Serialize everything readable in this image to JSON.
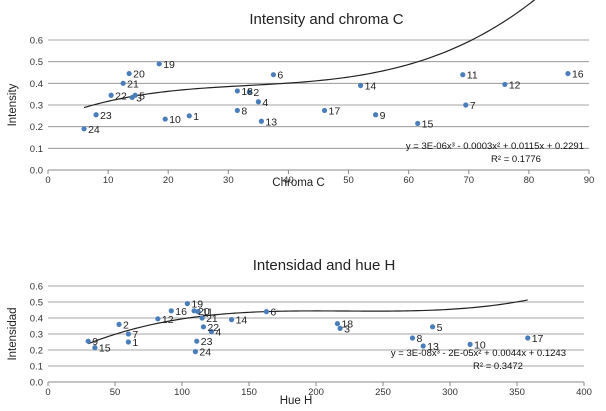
{
  "colors": {
    "marker": "#4a7ebb",
    "trend": "#222222",
    "grid": "#888888"
  },
  "chart_data": [
    {
      "type": "scatter",
      "title": "Intensity and chroma C",
      "xlabel": "Chroma C",
      "ylabel": "Intensity",
      "xlim": [
        0,
        90
      ],
      "ylim": [
        0,
        0.6
      ],
      "xticks": [
        0,
        10,
        20,
        30,
        40,
        50,
        60,
        70,
        80,
        90
      ],
      "yticks": [
        0,
        0.1,
        0.2,
        0.3,
        0.4,
        0.5,
        0.6
      ],
      "grid": "horizontal",
      "trendline": {
        "equation": "y = 3E-06x³ - 0.0003x² + 0.0115x + 0.2291",
        "r2": "R² = 0.1776",
        "coefficients": [
          3e-06,
          -0.0003,
          0.0115,
          0.2291
        ],
        "x_range": [
          6,
          86.5
        ]
      },
      "points": [
        {
          "label": "1",
          "x": 23.5,
          "y": 0.25
        },
        {
          "label": "2",
          "x": 33.5,
          "y": 0.36
        },
        {
          "label": "3",
          "x": 14,
          "y": 0.335
        },
        {
          "label": "4",
          "x": 35,
          "y": 0.315
        },
        {
          "label": "5",
          "x": 14.5,
          "y": 0.345
        },
        {
          "label": "6",
          "x": 37.5,
          "y": 0.44
        },
        {
          "label": "7",
          "x": 69.5,
          "y": 0.3
        },
        {
          "label": "8",
          "x": 31.5,
          "y": 0.275
        },
        {
          "label": "9",
          "x": 54.5,
          "y": 0.255
        },
        {
          "label": "10",
          "x": 19.5,
          "y": 0.235
        },
        {
          "label": "11",
          "x": 69,
          "y": 0.44
        },
        {
          "label": "12",
          "x": 76,
          "y": 0.395
        },
        {
          "label": "13",
          "x": 35.5,
          "y": 0.225
        },
        {
          "label": "14",
          "x": 52,
          "y": 0.39
        },
        {
          "label": "15",
          "x": 61.5,
          "y": 0.215
        },
        {
          "label": "16",
          "x": 86.5,
          "y": 0.445
        },
        {
          "label": "17",
          "x": 46,
          "y": 0.275
        },
        {
          "label": "18",
          "x": 31.5,
          "y": 0.365
        },
        {
          "label": "19",
          "x": 18.5,
          "y": 0.49
        },
        {
          "label": "20",
          "x": 13.5,
          "y": 0.445
        },
        {
          "label": "21",
          "x": 12.5,
          "y": 0.4
        },
        {
          "label": "22",
          "x": 10.5,
          "y": 0.345
        },
        {
          "label": "23",
          "x": 8,
          "y": 0.255
        },
        {
          "label": "24",
          "x": 6,
          "y": 0.19
        }
      ]
    },
    {
      "type": "scatter",
      "title": "Intensidad and hue H",
      "xlabel": "Hue  H",
      "ylabel": "Intensidad",
      "xlim": [
        0,
        400
      ],
      "ylim": [
        0,
        0.6
      ],
      "xticks": [
        0,
        50,
        100,
        150,
        200,
        250,
        300,
        350,
        400
      ],
      "yticks": [
        0,
        0.1,
        0.2,
        0.3,
        0.4,
        0.5,
        0.6
      ],
      "grid": "horizontal",
      "trendline": {
        "equation": "y = 3E-08x³ - 2E-05x² + 0.0044x + 0.1243",
        "r2": "R² = 0.3472",
        "coefficients": [
          3e-08,
          -2e-05,
          0.0044,
          0.1243
        ],
        "x_range": [
          30,
          358
        ]
      },
      "points": [
        {
          "label": "1",
          "x": 60,
          "y": 0.25
        },
        {
          "label": "2",
          "x": 53,
          "y": 0.36
        },
        {
          "label": "3",
          "x": 218,
          "y": 0.335
        },
        {
          "label": "4",
          "x": 122,
          "y": 0.315
        },
        {
          "label": "5",
          "x": 287,
          "y": 0.345
        },
        {
          "label": "6",
          "x": 163,
          "y": 0.44
        },
        {
          "label": "7",
          "x": 60,
          "y": 0.3
        },
        {
          "label": "8",
          "x": 272,
          "y": 0.275
        },
        {
          "label": "9",
          "x": 30,
          "y": 0.255
        },
        {
          "label": "10",
          "x": 315,
          "y": 0.235
        },
        {
          "label": "11",
          "x": 112,
          "y": 0.44
        },
        {
          "label": "12",
          "x": 82,
          "y": 0.395
        },
        {
          "label": "13",
          "x": 280,
          "y": 0.225
        },
        {
          "label": "14",
          "x": 137,
          "y": 0.39
        },
        {
          "label": "15",
          "x": 35,
          "y": 0.215
        },
        {
          "label": "16",
          "x": 92,
          "y": 0.445
        },
        {
          "label": "17",
          "x": 358,
          "y": 0.275
        },
        {
          "label": "18",
          "x": 216,
          "y": 0.365
        },
        {
          "label": "19",
          "x": 104,
          "y": 0.49
        },
        {
          "label": "20",
          "x": 109,
          "y": 0.445
        },
        {
          "label": "21",
          "x": 115,
          "y": 0.4
        },
        {
          "label": "22",
          "x": 116,
          "y": 0.345
        },
        {
          "label": "23",
          "x": 111,
          "y": 0.255
        },
        {
          "label": "24",
          "x": 110,
          "y": 0.19
        }
      ]
    }
  ]
}
